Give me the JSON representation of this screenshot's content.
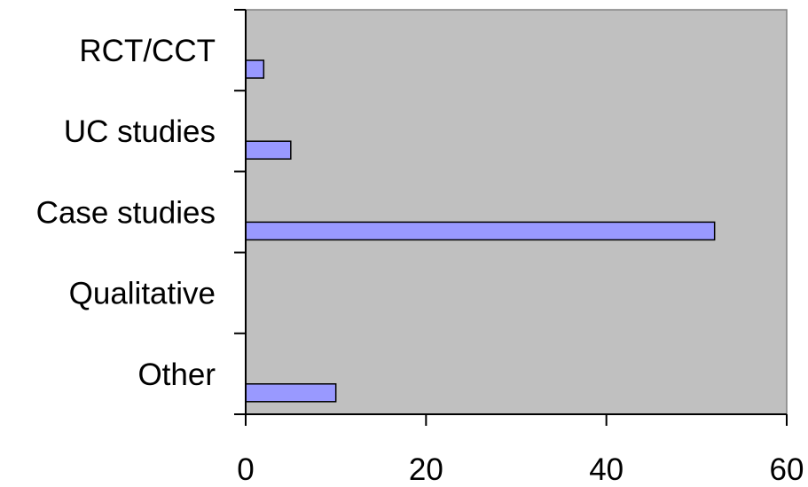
{
  "chart_data": {
    "type": "bar",
    "orientation": "horizontal",
    "categories": [
      "RCT/CCT",
      "UC studies",
      "Case studies",
      "Qualitative",
      "Other"
    ],
    "values": [
      2,
      5,
      52,
      0,
      10
    ],
    "xlim": [
      0,
      60
    ],
    "xticks": [
      0,
      20,
      40,
      60
    ],
    "xtick_labels": [
      "0",
      "20",
      "40",
      "60"
    ],
    "title": "",
    "xlabel": "",
    "ylabel": "",
    "grid": false,
    "legend": "none",
    "colors": {
      "plot_background": "#c0c0c0",
      "bar_fill": "#9999ff",
      "bar_stroke": "#000000",
      "axis": "#000000"
    }
  }
}
